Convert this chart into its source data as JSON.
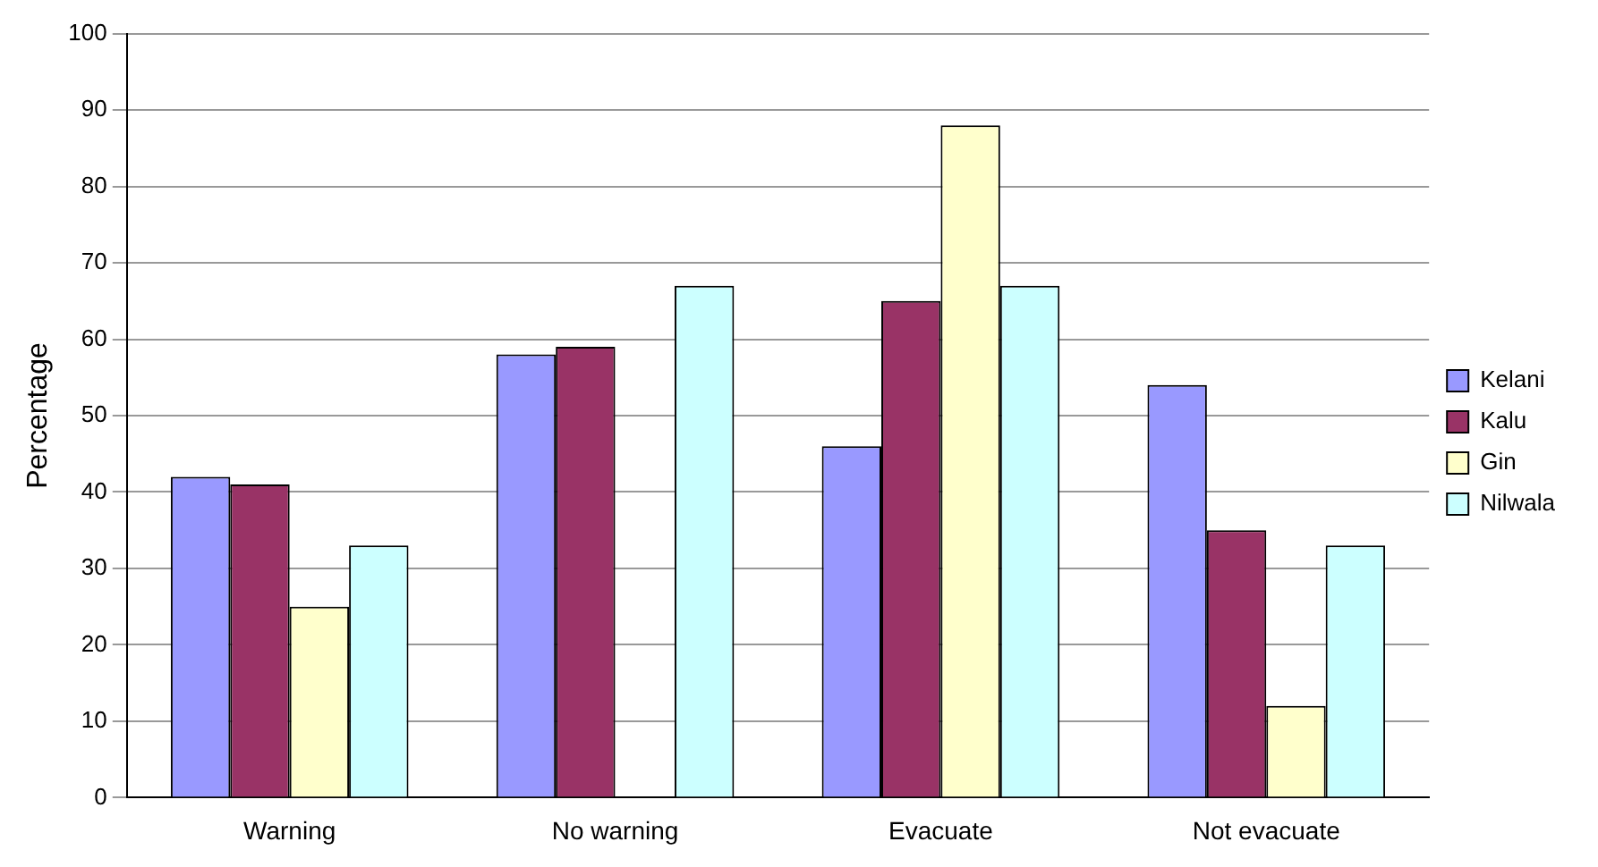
{
  "chart_data": {
    "type": "bar",
    "ylabel": "Percentage",
    "categories": [
      "Warning",
      "No warning",
      "Evacuate",
      "Not evacuate"
    ],
    "series": [
      {
        "name": "Kelani",
        "color": "#9999ff",
        "values": [
          42,
          58,
          46,
          54
        ]
      },
      {
        "name": "Kalu",
        "color": "#993366",
        "values": [
          41,
          59,
          65,
          35
        ]
      },
      {
        "name": "Gin",
        "color": "#ffffcc",
        "values": [
          25,
          0,
          88,
          12
        ]
      },
      {
        "name": "Nilwala",
        "color": "#ccffff",
        "values": [
          33,
          67,
          67,
          33
        ]
      }
    ],
    "ylim": [
      0,
      100
    ],
    "yticks": [
      0,
      10,
      20,
      30,
      40,
      50,
      60,
      70,
      80,
      90,
      100
    ],
    "grid": "y",
    "legend": "right"
  }
}
